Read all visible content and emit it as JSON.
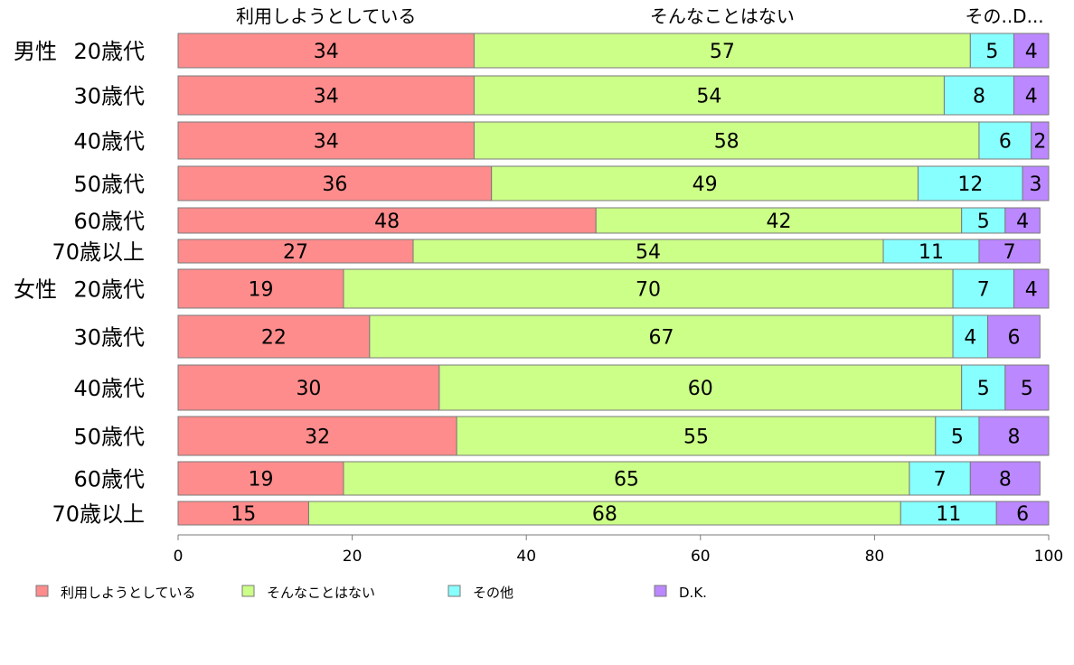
{
  "chart_data": {
    "type": "bar",
    "orientation": "horizontal",
    "stacked": true,
    "groups": [
      "男性",
      "女性"
    ],
    "categories": [
      "20歳代",
      "30歳代",
      "40歳代",
      "50歳代",
      "60歳代",
      "70歳以上",
      "20歳代",
      "30歳代",
      "40歳代",
      "50歳代",
      "60歳代",
      "70歳以上"
    ],
    "series": [
      {
        "name": "利用しようとしている",
        "color": "#ff8c8c",
        "values": [
          34,
          34,
          34,
          36,
          48,
          27,
          19,
          22,
          30,
          32,
          19,
          15
        ]
      },
      {
        "name": "そんなことはない",
        "color": "#ccff88",
        "values": [
          57,
          54,
          58,
          49,
          42,
          54,
          70,
          67,
          60,
          55,
          65,
          68
        ]
      },
      {
        "name": "その他",
        "color": "#88ffff",
        "values": [
          5,
          8,
          6,
          12,
          5,
          11,
          7,
          4,
          5,
          5,
          7,
          11
        ]
      },
      {
        "name": "D.K.",
        "color": "#bb88ff",
        "values": [
          4,
          4,
          2,
          3,
          4,
          7,
          4,
          6,
          5,
          8,
          8,
          6
        ]
      }
    ],
    "top_labels": [
      "利用しようとしている",
      "そんなことはない",
      "その..D..."
    ],
    "xlim": [
      0,
      100
    ],
    "xticks": [
      0,
      20,
      40,
      60,
      80,
      100
    ],
    "legend_position": "bottom"
  }
}
